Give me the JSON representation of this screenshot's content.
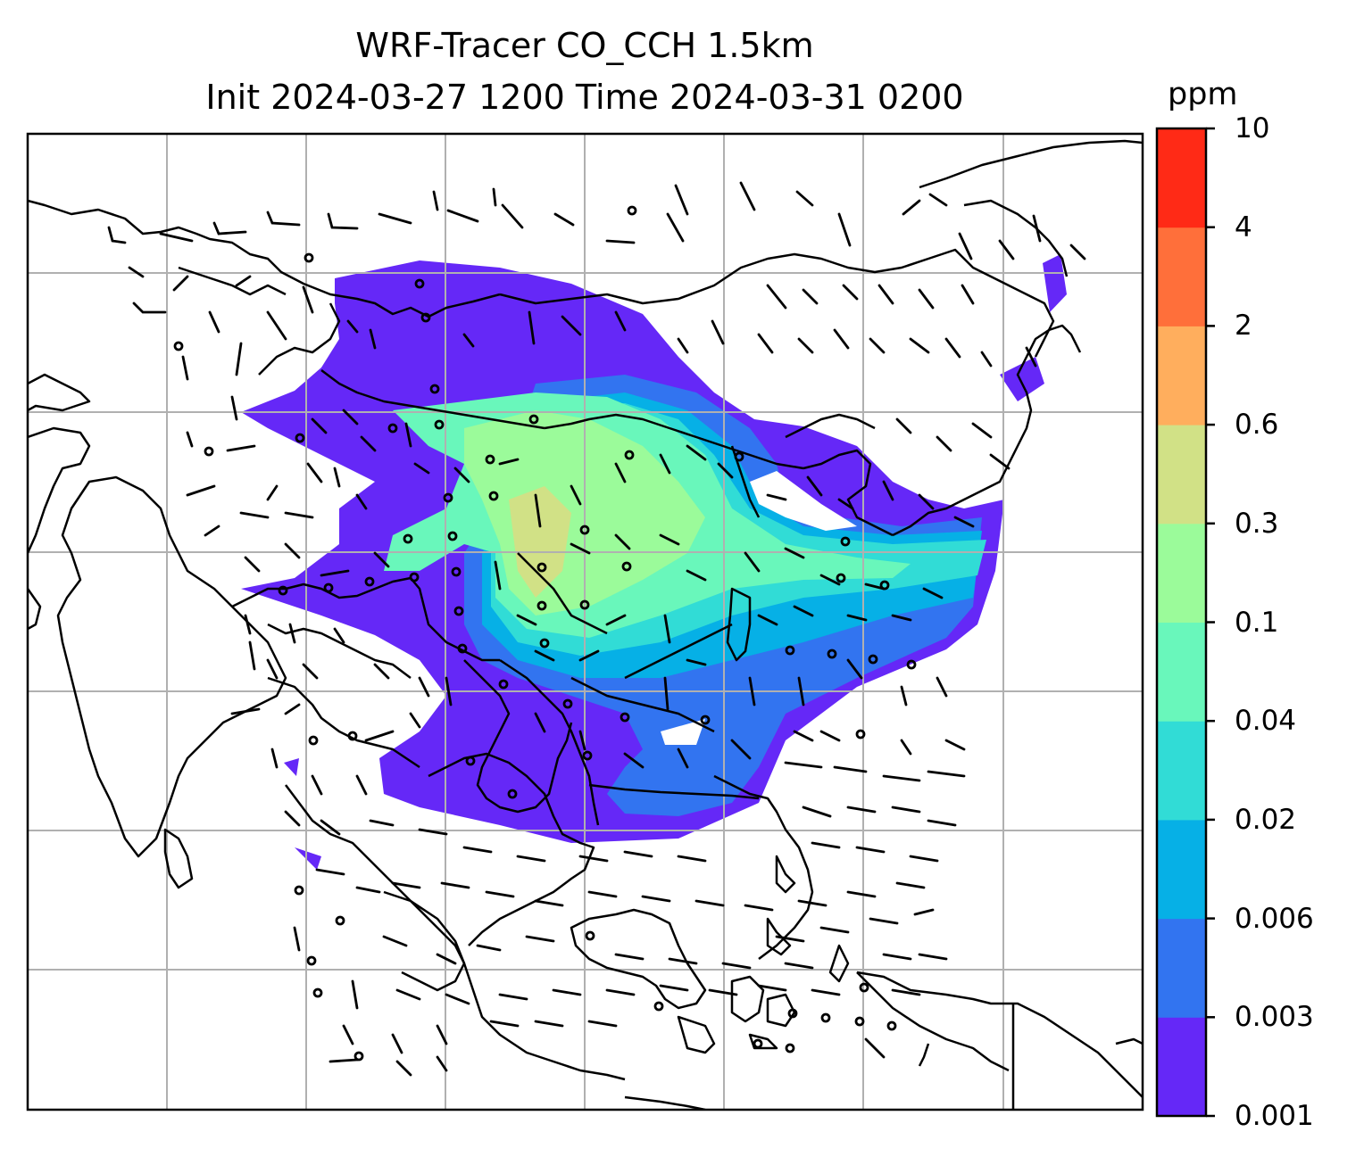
{
  "title_line1": "WRF-Tracer CO_CCH 1.5km",
  "title_line2": "Init 2024-03-27 1200 Time 2024-03-31 0200",
  "colorbar": {
    "units": "ppm",
    "levels": [
      "0.001",
      "0.003",
      "0.006",
      "0.02",
      "0.04",
      "0.1",
      "0.3",
      "0.6",
      "2",
      "4",
      "10"
    ],
    "colors": [
      "#6528f7",
      "#3274f0",
      "#06b0e6",
      "#31dcd6",
      "#69f7bb",
      "#9bfb9a",
      "#d1e186",
      "#ffae5d",
      "#ff6f3a",
      "#ff2a16"
    ]
  },
  "colors": {
    "coast": "#000000",
    "grid": "#b0b0b0",
    "barb": "#000000"
  }
}
